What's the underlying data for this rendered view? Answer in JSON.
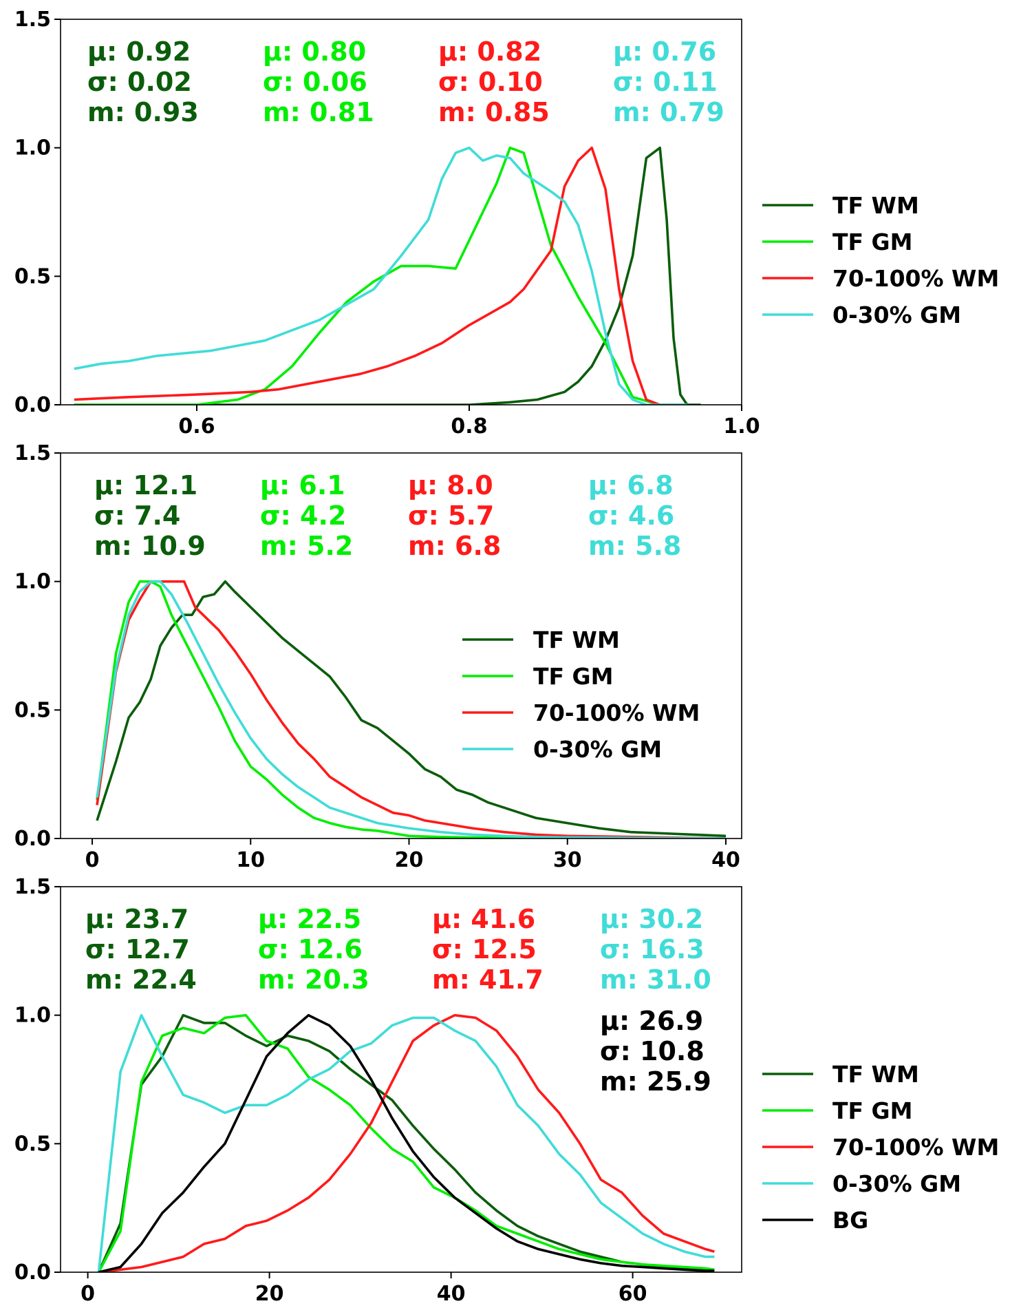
{
  "colors": {
    "tf_wm": "#0b5d0b",
    "tf_gm": "#00ee00",
    "wm70": "#ff1a1a",
    "gm030": "#40dcd8",
    "bg": "#000000"
  },
  "chart_data": [
    {
      "type": "line",
      "xlim": [
        0.5,
        1.0
      ],
      "ylim": [
        0.0,
        1.5
      ],
      "xticks": [
        0.6,
        0.8,
        1.0
      ],
      "xtick_labels": [
        "0.6",
        "0.8",
        "1.0"
      ],
      "yticks": [
        0.0,
        0.5,
        1.0,
        1.5
      ],
      "ytick_labels": [
        "0.0",
        "0.5",
        "1.0",
        "1.5"
      ],
      "legend": {
        "placement": "outside-right",
        "labels": [
          "TF WM",
          "TF GM",
          "70-100% WM",
          "0-30% GM"
        ]
      },
      "stats": [
        {
          "lines": [
            "μ: 0.92",
            "σ: 0.02",
            "m: 0.93"
          ],
          "color_key": "tf_wm"
        },
        {
          "lines": [
            "μ: 0.80",
            "σ: 0.06",
            "m: 0.81"
          ],
          "color_key": "tf_gm"
        },
        {
          "lines": [
            "μ: 0.82",
            "σ: 0.10",
            "m: 0.85"
          ],
          "color_key": "wm70"
        },
        {
          "lines": [
            "μ: 0.76",
            "σ: 0.11",
            "m: 0.79"
          ],
          "color_key": "gm030"
        }
      ],
      "series": [
        {
          "name": "TF WM",
          "color_key": "tf_wm",
          "x": [
            0.51,
            0.8,
            0.83,
            0.85,
            0.87,
            0.88,
            0.89,
            0.9,
            0.91,
            0.92,
            0.93,
            0.94,
            0.945,
            0.95,
            0.955,
            0.96,
            0.97
          ],
          "y": [
            0.0,
            0.0,
            0.01,
            0.02,
            0.05,
            0.09,
            0.15,
            0.25,
            0.38,
            0.58,
            0.96,
            1.0,
            0.72,
            0.26,
            0.04,
            0.0,
            0.0
          ]
        },
        {
          "name": "TF GM",
          "color_key": "tf_gm",
          "x": [
            0.51,
            0.6,
            0.63,
            0.65,
            0.67,
            0.69,
            0.71,
            0.73,
            0.75,
            0.77,
            0.79,
            0.8,
            0.82,
            0.83,
            0.84,
            0.86,
            0.88,
            0.9,
            0.92,
            0.94,
            0.96
          ],
          "y": [
            0.0,
            0.0,
            0.02,
            0.06,
            0.15,
            0.28,
            0.4,
            0.48,
            0.54,
            0.54,
            0.53,
            0.64,
            0.86,
            1.0,
            0.98,
            0.62,
            0.42,
            0.24,
            0.03,
            0.0,
            0.0
          ]
        },
        {
          "name": "70-100% WM",
          "color_key": "wm70",
          "x": [
            0.51,
            0.55,
            0.6,
            0.64,
            0.66,
            0.68,
            0.7,
            0.72,
            0.74,
            0.76,
            0.78,
            0.8,
            0.82,
            0.83,
            0.84,
            0.86,
            0.87,
            0.88,
            0.89,
            0.9,
            0.91,
            0.92,
            0.93,
            0.94,
            0.96
          ],
          "y": [
            0.02,
            0.03,
            0.04,
            0.05,
            0.06,
            0.08,
            0.1,
            0.12,
            0.15,
            0.19,
            0.24,
            0.31,
            0.37,
            0.4,
            0.45,
            0.6,
            0.85,
            0.95,
            1.0,
            0.84,
            0.45,
            0.17,
            0.02,
            0.0,
            0.0
          ]
        },
        {
          "name": "0-30% GM",
          "color_key": "gm030",
          "x": [
            0.51,
            0.53,
            0.55,
            0.57,
            0.59,
            0.61,
            0.63,
            0.65,
            0.67,
            0.69,
            0.71,
            0.73,
            0.75,
            0.77,
            0.78,
            0.79,
            0.8,
            0.81,
            0.82,
            0.83,
            0.84,
            0.86,
            0.87,
            0.88,
            0.89,
            0.9,
            0.91,
            0.92,
            0.93,
            0.96
          ],
          "y": [
            0.14,
            0.16,
            0.17,
            0.19,
            0.2,
            0.21,
            0.23,
            0.25,
            0.29,
            0.33,
            0.39,
            0.45,
            0.58,
            0.72,
            0.88,
            0.98,
            1.0,
            0.95,
            0.97,
            0.96,
            0.9,
            0.83,
            0.79,
            0.7,
            0.52,
            0.28,
            0.08,
            0.02,
            0.0,
            0.0
          ]
        }
      ]
    },
    {
      "type": "line",
      "xlim": [
        -2.0,
        41.0
      ],
      "ylim": [
        0.0,
        1.5
      ],
      "xticks": [
        0,
        10,
        20,
        30,
        40
      ],
      "xtick_labels": [
        "0",
        "10",
        "20",
        "30",
        "40"
      ],
      "yticks": [
        0.0,
        0.5,
        1.0,
        1.5
      ],
      "ytick_labels": [
        "0.0",
        "0.5",
        "1.0",
        "1.5"
      ],
      "legend": {
        "placement": "center-right",
        "labels": [
          "TF WM",
          "TF GM",
          "70-100% WM",
          "0-30% GM"
        ]
      },
      "stats": [
        {
          "lines": [
            "μ: 12.1",
            "σ: 7.4",
            "m: 10.9"
          ],
          "color_key": "tf_wm"
        },
        {
          "lines": [
            "μ: 6.1",
            "σ: 4.2",
            "m: 5.2"
          ],
          "color_key": "tf_gm"
        },
        {
          "lines": [
            "μ: 8.0",
            "σ: 5.7",
            "m: 6.8"
          ],
          "color_key": "wm70"
        },
        {
          "lines": [
            "μ: 6.8",
            "σ: 4.6",
            "m: 5.8"
          ],
          "color_key": "gm030"
        }
      ],
      "series": [
        {
          "name": "TF WM",
          "color_key": "tf_wm",
          "x": [
            0.3,
            1.5,
            2.3,
            3.0,
            3.7,
            4.3,
            5.0,
            5.7,
            6.3,
            7.0,
            7.7,
            8.4,
            9.0,
            10.0,
            11.0,
            12.0,
            13.0,
            14.0,
            15.0,
            16.0,
            17.0,
            18.0,
            19.0,
            20.0,
            21.0,
            22.0,
            23.0,
            24.0,
            25.0,
            26.0,
            27.0,
            28.0,
            30.0,
            32.0,
            34.0,
            36.0,
            38.0,
            40.0
          ],
          "y": [
            0.07,
            0.3,
            0.47,
            0.53,
            0.62,
            0.75,
            0.82,
            0.87,
            0.87,
            0.94,
            0.95,
            1.0,
            0.96,
            0.9,
            0.84,
            0.78,
            0.73,
            0.68,
            0.63,
            0.55,
            0.46,
            0.43,
            0.38,
            0.33,
            0.27,
            0.24,
            0.19,
            0.17,
            0.14,
            0.12,
            0.1,
            0.08,
            0.06,
            0.04,
            0.025,
            0.02,
            0.015,
            0.01
          ]
        },
        {
          "name": "TF GM",
          "color_key": "tf_gm",
          "x": [
            0.3,
            1.5,
            2.3,
            3.0,
            3.7,
            4.3,
            5.0,
            6.0,
            7.0,
            8.0,
            9.0,
            10.0,
            11.0,
            12.0,
            13.0,
            14.0,
            15.0,
            16.0,
            17.0,
            18.0,
            19.0,
            20.0,
            22.0,
            24.0,
            26.0,
            28.0,
            30.0,
            35.0,
            40.0
          ],
          "y": [
            0.15,
            0.72,
            0.92,
            1.0,
            1.0,
            0.98,
            0.87,
            0.75,
            0.63,
            0.51,
            0.38,
            0.28,
            0.23,
            0.17,
            0.12,
            0.08,
            0.06,
            0.045,
            0.035,
            0.03,
            0.02,
            0.01,
            0.006,
            0.004,
            0.003,
            0.002,
            0.001,
            0.0,
            0.0
          ]
        },
        {
          "name": "70-100% WM",
          "color_key": "wm70",
          "x": [
            0.3,
            1.5,
            2.3,
            3.0,
            3.7,
            4.3,
            5.0,
            5.8,
            6.5,
            7.0,
            8.0,
            9.0,
            10.0,
            11.0,
            12.0,
            13.0,
            14.0,
            15.0,
            16.0,
            17.0,
            18.0,
            19.0,
            20.0,
            21.0,
            22.0,
            24.0,
            26.0,
            28.0,
            30.0,
            35.0,
            40.0
          ],
          "y": [
            0.13,
            0.65,
            0.85,
            0.93,
            1.0,
            1.0,
            1.0,
            1.0,
            0.9,
            0.87,
            0.81,
            0.73,
            0.64,
            0.54,
            0.45,
            0.37,
            0.31,
            0.24,
            0.2,
            0.16,
            0.13,
            0.1,
            0.09,
            0.07,
            0.06,
            0.04,
            0.025,
            0.015,
            0.01,
            0.005,
            0.0
          ]
        },
        {
          "name": "0-30% GM",
          "color_key": "gm030",
          "x": [
            0.3,
            1.5,
            2.3,
            3.0,
            3.7,
            4.3,
            5.0,
            6.0,
            7.0,
            8.0,
            9.0,
            10.0,
            11.0,
            12.0,
            13.0,
            14.0,
            15.0,
            16.0,
            17.0,
            18.0,
            20.0,
            22.0,
            24.0,
            26.0,
            28.0,
            30.0,
            35.0,
            40.0
          ],
          "y": [
            0.16,
            0.66,
            0.87,
            0.96,
            1.0,
            1.0,
            0.95,
            0.84,
            0.72,
            0.6,
            0.49,
            0.39,
            0.31,
            0.25,
            0.2,
            0.16,
            0.12,
            0.1,
            0.08,
            0.06,
            0.04,
            0.025,
            0.015,
            0.01,
            0.006,
            0.004,
            0.002,
            0.0
          ]
        }
      ]
    },
    {
      "type": "line",
      "xlim": [
        -3.0,
        72.0
      ],
      "ylim": [
        0.0,
        1.5
      ],
      "xticks": [
        0,
        20,
        40,
        60
      ],
      "xtick_labels": [
        "0",
        "20",
        "40",
        "60"
      ],
      "yticks": [
        0.0,
        0.5,
        1.0,
        1.5
      ],
      "ytick_labels": [
        "0.0",
        "0.5",
        "1.0",
        "1.5"
      ],
      "legend": {
        "placement": "outside-right",
        "labels": [
          "TF WM",
          "TF GM",
          "70-100% WM",
          "0-30% GM",
          "BG"
        ]
      },
      "stats": [
        {
          "lines": [
            "μ: 23.7",
            "σ: 12.7",
            "m: 22.4"
          ],
          "color_key": "tf_wm"
        },
        {
          "lines": [
            "μ: 22.5",
            "σ: 12.6",
            "m: 20.3"
          ],
          "color_key": "tf_gm"
        },
        {
          "lines": [
            "μ: 41.6",
            "σ: 12.5",
            "m: 41.7"
          ],
          "color_key": "wm70"
        },
        {
          "lines": [
            "μ: 30.2",
            "σ: 16.3",
            "m: 31.0"
          ],
          "color_key": "gm030"
        },
        {
          "lines": [
            "μ: 26.9",
            "σ: 10.8",
            "m: 25.9"
          ],
          "color_key": "bg"
        }
      ],
      "series": [
        {
          "name": "TF WM",
          "color_key": "tf_wm",
          "x": [
            1.2,
            3.6,
            5.9,
            8.2,
            10.5,
            12.8,
            15.1,
            17.4,
            19.7,
            22.0,
            24.3,
            26.6,
            28.9,
            31.2,
            33.5,
            35.8,
            38.1,
            40.4,
            42.7,
            45.0,
            47.3,
            49.6,
            51.9,
            54.2,
            56.5,
            58.8,
            61.1,
            63.4,
            65.7,
            68.0,
            69.0
          ],
          "y": [
            0.0,
            0.19,
            0.73,
            0.84,
            1.0,
            0.97,
            0.97,
            0.92,
            0.88,
            0.92,
            0.9,
            0.86,
            0.79,
            0.73,
            0.67,
            0.57,
            0.48,
            0.4,
            0.31,
            0.24,
            0.18,
            0.14,
            0.11,
            0.08,
            0.06,
            0.04,
            0.03,
            0.02,
            0.015,
            0.01,
            0.01
          ]
        },
        {
          "name": "TF GM",
          "color_key": "tf_gm",
          "x": [
            1.2,
            3.6,
            5.9,
            8.2,
            10.5,
            12.8,
            15.1,
            17.4,
            19.7,
            22.0,
            24.3,
            26.6,
            28.9,
            31.2,
            33.5,
            35.8,
            38.1,
            40.4,
            42.7,
            45.0,
            47.3,
            49.6,
            51.9,
            54.2,
            56.5,
            58.8,
            61.1,
            63.4,
            65.7,
            68.0,
            69.0
          ],
          "y": [
            0.0,
            0.16,
            0.74,
            0.92,
            0.95,
            0.93,
            0.99,
            1.0,
            0.9,
            0.87,
            0.76,
            0.71,
            0.65,
            0.56,
            0.48,
            0.43,
            0.33,
            0.29,
            0.24,
            0.18,
            0.15,
            0.12,
            0.09,
            0.07,
            0.05,
            0.04,
            0.03,
            0.025,
            0.02,
            0.015,
            0.01
          ]
        },
        {
          "name": "70-100% WM",
          "color_key": "wm70",
          "x": [
            1.2,
            3.6,
            5.9,
            8.2,
            10.5,
            12.8,
            15.1,
            17.4,
            19.7,
            22.0,
            24.3,
            26.6,
            28.9,
            31.2,
            33.5,
            35.8,
            38.1,
            40.4,
            42.7,
            45.0,
            47.3,
            49.6,
            51.9,
            54.2,
            56.5,
            58.8,
            61.1,
            63.4,
            65.7,
            68.0,
            69.0
          ],
          "y": [
            0.0,
            0.01,
            0.02,
            0.04,
            0.06,
            0.11,
            0.13,
            0.18,
            0.2,
            0.24,
            0.29,
            0.36,
            0.46,
            0.58,
            0.74,
            0.9,
            0.96,
            1.0,
            0.99,
            0.94,
            0.84,
            0.71,
            0.62,
            0.5,
            0.36,
            0.31,
            0.22,
            0.15,
            0.12,
            0.09,
            0.08
          ]
        },
        {
          "name": "0-30% GM",
          "color_key": "gm030",
          "x": [
            1.2,
            3.6,
            5.9,
            8.2,
            10.5,
            12.8,
            15.1,
            17.4,
            19.7,
            22.0,
            24.3,
            26.6,
            28.9,
            31.2,
            33.5,
            35.8,
            38.1,
            40.4,
            42.7,
            45.0,
            47.3,
            49.6,
            51.9,
            54.2,
            56.5,
            58.8,
            61.1,
            63.4,
            65.7,
            68.0,
            69.0
          ],
          "y": [
            0.0,
            0.78,
            1.0,
            0.84,
            0.69,
            0.66,
            0.62,
            0.65,
            0.65,
            0.69,
            0.75,
            0.79,
            0.86,
            0.89,
            0.96,
            0.99,
            0.99,
            0.94,
            0.9,
            0.8,
            0.65,
            0.57,
            0.46,
            0.38,
            0.27,
            0.21,
            0.15,
            0.11,
            0.08,
            0.06,
            0.06
          ]
        },
        {
          "name": "BG",
          "color_key": "bg",
          "x": [
            1.2,
            3.6,
            5.9,
            8.2,
            10.5,
            12.8,
            15.1,
            17.4,
            19.7,
            22.0,
            24.3,
            26.6,
            28.9,
            31.2,
            33.5,
            35.8,
            38.1,
            40.4,
            42.7,
            45.0,
            47.3,
            49.6,
            51.9,
            54.2,
            56.5,
            58.8,
            61.1,
            63.4,
            65.7,
            68.0,
            69.0
          ],
          "y": [
            0.0,
            0.02,
            0.11,
            0.23,
            0.31,
            0.41,
            0.5,
            0.67,
            0.84,
            0.93,
            1.0,
            0.96,
            0.88,
            0.75,
            0.6,
            0.47,
            0.37,
            0.29,
            0.23,
            0.17,
            0.12,
            0.09,
            0.07,
            0.05,
            0.035,
            0.025,
            0.02,
            0.015,
            0.01,
            0.006,
            0.005
          ]
        }
      ]
    }
  ]
}
